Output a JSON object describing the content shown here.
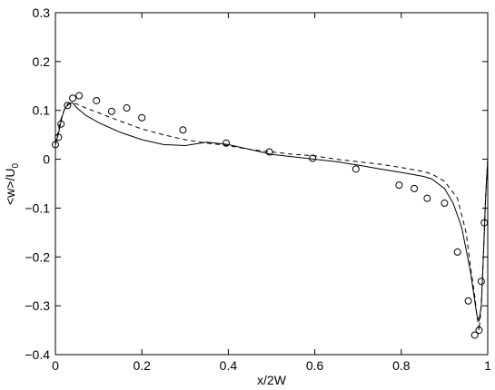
{
  "chart_data": {
    "type": "line",
    "title": "",
    "xlabel": "x/2W",
    "ylabel_main": "<w>/U",
    "ylabel_sub": "0",
    "xlim": [
      0,
      1
    ],
    "ylim": [
      -0.4,
      0.3
    ],
    "xticks": [
      0,
      0.2,
      0.4,
      0.6,
      0.8,
      1
    ],
    "yticks": [
      -0.4,
      -0.3,
      -0.2,
      -0.1,
      0,
      0.1,
      0.2,
      0.3
    ],
    "xtick_labels": [
      "0",
      "0.2",
      "0.4",
      "0.6",
      "0.8",
      "1"
    ],
    "ytick_labels": [
      "−0.4",
      "−0.3",
      "−0.2",
      "−0.1",
      "0",
      "0.1",
      "0.2",
      "0.3"
    ],
    "grid": false,
    "legend": "none",
    "series": [
      {
        "style": "solid",
        "x": [
          0,
          0.005,
          0.01,
          0.015,
          0.02,
          0.03,
          0.04,
          0.05,
          0.07,
          0.1,
          0.15,
          0.2,
          0.25,
          0.3,
          0.35,
          0.4,
          0.45,
          0.5,
          0.55,
          0.6,
          0.65,
          0.7,
          0.75,
          0.8,
          0.85,
          0.87,
          0.9,
          0.92,
          0.94,
          0.96,
          0.97,
          0.975,
          0.98,
          0.985,
          0.99,
          0.995,
          1.0
        ],
        "y": [
          0.03,
          0.045,
          0.065,
          0.085,
          0.1,
          0.115,
          0.115,
          0.105,
          0.09,
          0.075,
          0.055,
          0.04,
          0.03,
          0.028,
          0.035,
          0.03,
          0.02,
          0.01,
          0.005,
          0.0,
          -0.005,
          -0.012,
          -0.02,
          -0.027,
          -0.035,
          -0.04,
          -0.06,
          -0.09,
          -0.14,
          -0.23,
          -0.29,
          -0.32,
          -0.33,
          -0.3,
          -0.2,
          -0.08,
          0.0
        ]
      },
      {
        "style": "dashed",
        "x": [
          0,
          0.005,
          0.01,
          0.02,
          0.03,
          0.04,
          0.05,
          0.07,
          0.1,
          0.15,
          0.2,
          0.25,
          0.3,
          0.35,
          0.4,
          0.45,
          0.5,
          0.55,
          0.6,
          0.65,
          0.7,
          0.75,
          0.8,
          0.85,
          0.87,
          0.9,
          0.93,
          0.95,
          0.96,
          0.97,
          0.975,
          0.98,
          0.985,
          0.99,
          0.995,
          1.0
        ],
        "y": [
          0.03,
          0.05,
          0.075,
          0.1,
          0.112,
          0.115,
          0.113,
          0.105,
          0.095,
          0.078,
          0.062,
          0.05,
          0.04,
          0.033,
          0.028,
          0.02,
          0.015,
          0.01,
          0.007,
          0.0,
          -0.005,
          -0.01,
          -0.017,
          -0.025,
          -0.03,
          -0.045,
          -0.08,
          -0.15,
          -0.22,
          -0.28,
          -0.32,
          -0.35,
          -0.3,
          -0.2,
          -0.08,
          0.0
        ]
      },
      {
        "style": "markers",
        "x": [
          0.0,
          0.007,
          0.013,
          0.028,
          0.04,
          0.055,
          0.095,
          0.13,
          0.165,
          0.2,
          0.295,
          0.395,
          0.495,
          0.595,
          0.695,
          0.795,
          0.83,
          0.86,
          0.9,
          0.93,
          0.955,
          0.97,
          0.98,
          0.985,
          0.992
        ],
        "y": [
          0.03,
          0.045,
          0.072,
          0.11,
          0.125,
          0.13,
          0.12,
          0.098,
          0.105,
          0.085,
          0.06,
          0.033,
          0.015,
          0.002,
          -0.02,
          -0.053,
          -0.06,
          -0.08,
          -0.09,
          -0.19,
          -0.29,
          -0.36,
          -0.35,
          -0.25,
          -0.13
        ]
      }
    ]
  }
}
